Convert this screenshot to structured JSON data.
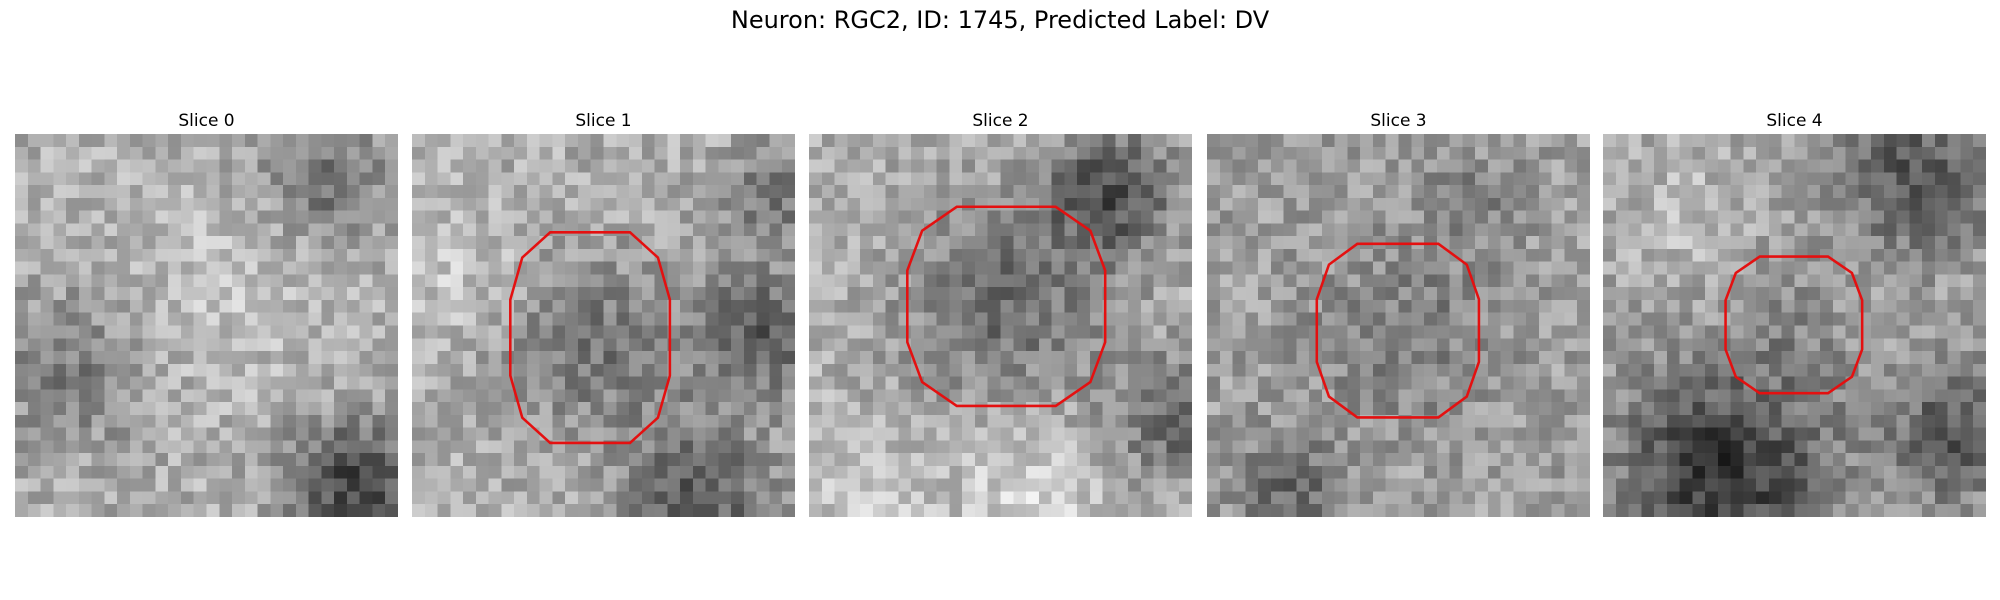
{
  "title": "Neuron: RGC2, ID: 1745, Predicted Label: DV",
  "panels": [
    {
      "title": "Slice 0"
    },
    {
      "title": "Slice 1"
    },
    {
      "title": "Slice 2"
    },
    {
      "title": "Slice 3"
    },
    {
      "title": "Slice 4"
    }
  ]
}
